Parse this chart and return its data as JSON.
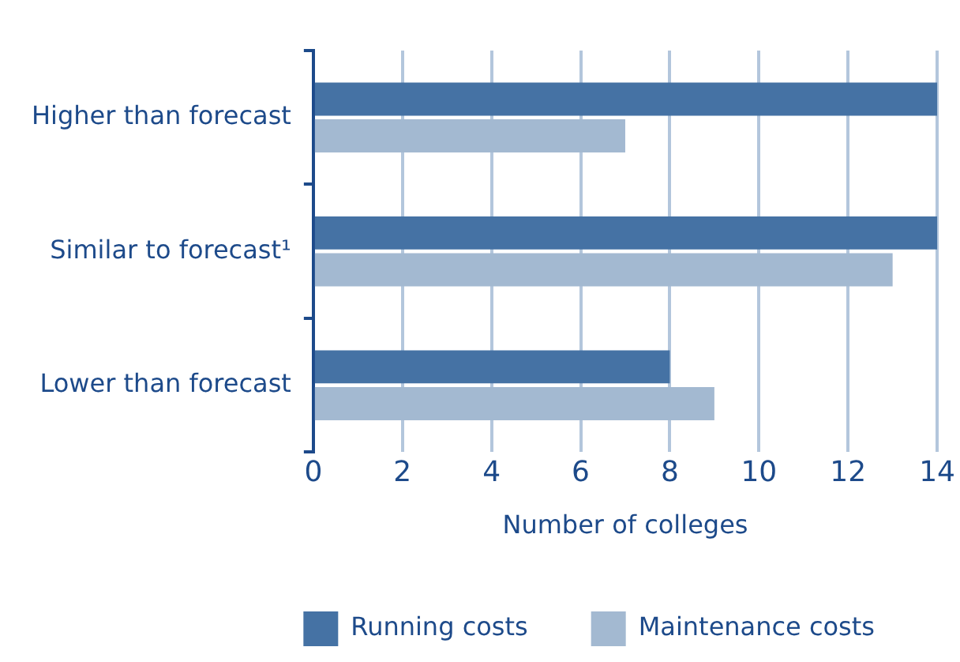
{
  "chart_data": {
    "type": "bar",
    "orientation": "horizontal",
    "xlabel": "Number of colleges",
    "categories": [
      "Higher than forecast",
      "Similar to forecast¹",
      "Lower than forecast"
    ],
    "series": [
      {
        "name": "Running costs",
        "color": "#4572a4",
        "values": [
          14,
          14,
          8
        ]
      },
      {
        "name": "Maintenance costs",
        "color": "#a3b9d1",
        "values": [
          7,
          13,
          9
        ]
      }
    ],
    "xlim": [
      0,
      14
    ],
    "xticks": [
      0,
      2,
      4,
      6,
      8,
      10,
      12,
      14
    ],
    "grid": "x",
    "legend": "bottom"
  }
}
